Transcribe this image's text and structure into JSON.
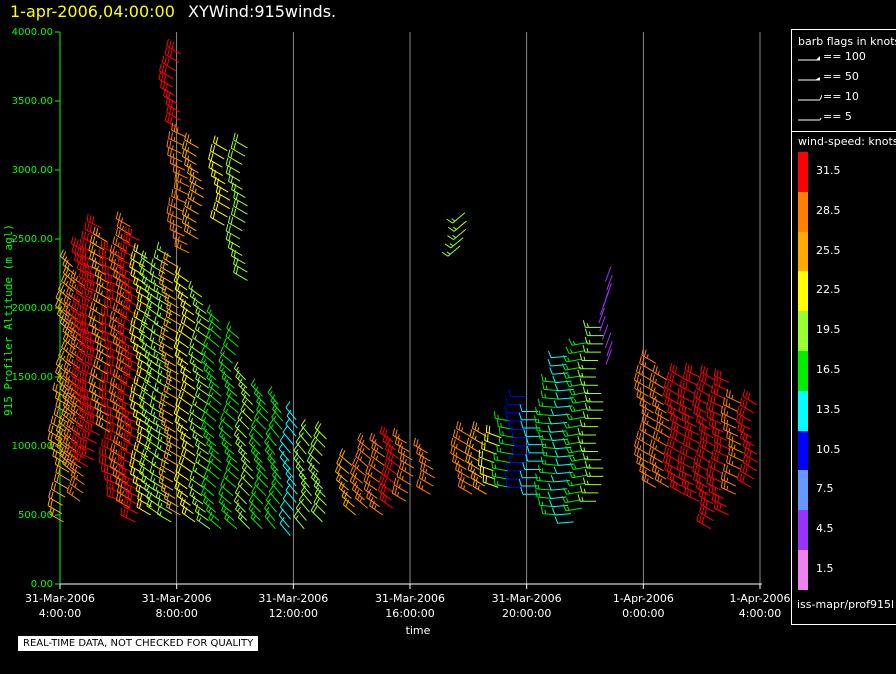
{
  "title": {
    "time": "1-apr-2006,04:00:00",
    "name": "XYWind:915winds."
  },
  "footer": {
    "quality_note": "REAL-TIME DATA, NOT CHECKED FOR QUALITY",
    "source": "iss-mapr/prof915l"
  },
  "legend": {
    "flags_title": "barb flags in knots",
    "flags": [
      {
        "label": "== 100",
        "kind": "pennant"
      },
      {
        "label": "== 50",
        "kind": "triangle"
      },
      {
        "label": "== 10",
        "kind": "full"
      },
      {
        "label": "== 5",
        "kind": "half"
      }
    ],
    "speed_title": "wind-speed: knots",
    "colorbar": [
      {
        "label": "31.5",
        "color": "#ff0000"
      },
      {
        "label": "28.5",
        "color": "#ff7f00"
      },
      {
        "label": "25.5",
        "color": "#ffaa00"
      },
      {
        "label": "22.5",
        "color": "#ffff00"
      },
      {
        "label": "19.5",
        "color": "#99ff33"
      },
      {
        "label": "16.5",
        "color": "#00ee00"
      },
      {
        "label": "13.5",
        "color": "#00ffff"
      },
      {
        "label": "10.5",
        "color": "#0000ff"
      },
      {
        "label": "7.5",
        "color": "#6699ff"
      },
      {
        "label": "4.5",
        "color": "#9933ff"
      },
      {
        "label": "1.5",
        "color": "#ee82ee"
      }
    ]
  },
  "chart_data": {
    "type": "scatter",
    "subtype": "wind-barb time-height profile",
    "xlabel": "time",
    "ylabel": "915 Profiler Altitude (m agl)",
    "ylim": [
      0,
      4000
    ],
    "yticks": [
      "0.00",
      "500.00",
      "1000.00",
      "1500.00",
      "2000.00",
      "2500.00",
      "3000.00",
      "3500.00",
      "4000.00"
    ],
    "xlim": [
      "2006-03-31T04:00",
      "2006-04-01T04:00"
    ],
    "xticks": [
      {
        "t": "2006-03-31T04:00",
        "line1": "31-Mar-2006",
        "line2": "4:00:00"
      },
      {
        "t": "2006-03-31T08:00",
        "line1": "31-Mar-2006",
        "line2": "8:00:00"
      },
      {
        "t": "2006-03-31T12:00",
        "line1": "31-Mar-2006",
        "line2": "12:00:00"
      },
      {
        "t": "2006-03-31T16:00",
        "line1": "31-Mar-2006",
        "line2": "16:00:00"
      },
      {
        "t": "2006-03-31T20:00",
        "line1": "31-Mar-2006",
        "line2": "20:00:00"
      },
      {
        "t": "2006-04-01T00:00",
        "line1": "1-Apr-2006",
        "line2": "0:00:00"
      },
      {
        "t": "2006-04-01T04:00",
        "line1": "1-Apr-2006",
        "line2": "4:00:00"
      }
    ],
    "grid": "vertical lines at x ticks",
    "speed_units": "knots",
    "profiles": [
      {
        "hour": 4.2,
        "bottom": 450,
        "top": 1400,
        "speed": 24,
        "dir": 300
      },
      {
        "hour": 4.4,
        "bottom": 800,
        "top": 2300,
        "speed": 26,
        "dir": 310
      },
      {
        "hour": 4.7,
        "bottom": 600,
        "top": 2200,
        "speed": 29,
        "dir": 305
      },
      {
        "hour": 5.0,
        "bottom": 850,
        "top": 2450,
        "speed": 31,
        "dir": 300
      },
      {
        "hour": 5.3,
        "bottom": 900,
        "top": 2600,
        "speed": 30,
        "dir": 295
      },
      {
        "hour": 5.6,
        "bottom": 1100,
        "top": 2500,
        "speed": 25,
        "dir": 300
      },
      {
        "hour": 6.0,
        "bottom": 600,
        "top": 2450,
        "speed": 31,
        "dir": 290
      },
      {
        "hour": 6.3,
        "bottom": 550,
        "top": 2600,
        "speed": 27,
        "dir": 300
      },
      {
        "hour": 6.6,
        "bottom": 450,
        "top": 2500,
        "speed": 30,
        "dir": 295
      },
      {
        "hour": 7.0,
        "bottom": 500,
        "top": 2400,
        "speed": 22,
        "dir": 300
      },
      {
        "hour": 7.3,
        "bottom": 500,
        "top": 2350,
        "speed": 20,
        "dir": 305
      },
      {
        "hour": 7.7,
        "bottom": 450,
        "top": 2400,
        "speed": 18,
        "dir": 300
      },
      {
        "hour": 8.0,
        "bottom": 3300,
        "top": 3850,
        "speed": 31,
        "dir": 300
      },
      {
        "hour": 8.0,
        "bottom": 500,
        "top": 2300,
        "speed": 24,
        "dir": 300
      },
      {
        "hour": 8.3,
        "bottom": 2400,
        "top": 3250,
        "speed": 27,
        "dir": 295
      },
      {
        "hour": 8.5,
        "bottom": 450,
        "top": 2200,
        "speed": 21,
        "dir": 305
      },
      {
        "hour": 8.8,
        "bottom": 2500,
        "top": 3200,
        "speed": 26,
        "dir": 300
      },
      {
        "hour": 9.0,
        "bottom": 400,
        "top": 2100,
        "speed": 19,
        "dir": 305
      },
      {
        "hour": 9.4,
        "bottom": 400,
        "top": 1900,
        "speed": 17,
        "dir": 310
      },
      {
        "hour": 9.7,
        "bottom": 2600,
        "top": 3150,
        "speed": 23,
        "dir": 300
      },
      {
        "hour": 10.0,
        "bottom": 400,
        "top": 1800,
        "speed": 16,
        "dir": 310
      },
      {
        "hour": 10.3,
        "bottom": 2200,
        "top": 3200,
        "speed": 20,
        "dir": 300
      },
      {
        "hour": 10.5,
        "bottom": 400,
        "top": 1500,
        "speed": 18,
        "dir": 315
      },
      {
        "hour": 11.0,
        "bottom": 400,
        "top": 1400,
        "speed": 16,
        "dir": 315
      },
      {
        "hour": 11.5,
        "bottom": 400,
        "top": 1300,
        "speed": 15,
        "dir": 320
      },
      {
        "hour": 12.0,
        "bottom": 350,
        "top": 1200,
        "speed": 14,
        "dir": 320
      },
      {
        "hour": 12.5,
        "bottom": 400,
        "top": 1100,
        "speed": 18,
        "dir": 320
      },
      {
        "hour": 13.0,
        "bottom": 450,
        "top": 1050,
        "speed": 20,
        "dir": 315
      },
      {
        "hour": 14.0,
        "bottom": 500,
        "top": 900,
        "speed": 24,
        "dir": 310
      },
      {
        "hour": 14.5,
        "bottom": 550,
        "top": 1000,
        "speed": 27,
        "dir": 310
      },
      {
        "hour": 15.0,
        "bottom": 500,
        "top": 1000,
        "speed": 28,
        "dir": 305
      },
      {
        "hour": 15.5,
        "bottom": 550,
        "top": 1050,
        "speed": 30,
        "dir": 305
      },
      {
        "hour": 16.0,
        "bottom": 600,
        "top": 1050,
        "speed": 29,
        "dir": 300
      },
      {
        "hour": 16.7,
        "bottom": 650,
        "top": 1000,
        "speed": 27,
        "dir": 300
      },
      {
        "hour": 17.8,
        "bottom": 2450,
        "top": 2700,
        "speed": 18,
        "dir": 230
      },
      {
        "hour": 18.0,
        "bottom": 650,
        "top": 1100,
        "speed": 29,
        "dir": 300
      },
      {
        "hour": 18.5,
        "bottom": 650,
        "top": 1100,
        "speed": 26,
        "dir": 300
      },
      {
        "hour": 19.0,
        "bottom": 700,
        "top": 1100,
        "speed": 22,
        "dir": 290
      },
      {
        "hour": 19.5,
        "bottom": 700,
        "top": 1200,
        "speed": 16,
        "dir": 280
      },
      {
        "hour": 20.0,
        "bottom": 700,
        "top": 1400,
        "speed": 11,
        "dir": 270
      },
      {
        "hour": 20.5,
        "bottom": 650,
        "top": 1300,
        "speed": 14,
        "dir": 270
      },
      {
        "hour": 21.0,
        "bottom": 500,
        "top": 1500,
        "speed": 17,
        "dir": 275
      },
      {
        "hour": 21.5,
        "bottom": 450,
        "top": 1700,
        "speed": 12,
        "dir": 265
      },
      {
        "hour": 22.0,
        "bottom": 550,
        "top": 1800,
        "speed": 15,
        "dir": 260
      },
      {
        "hour": 22.5,
        "bottom": 600,
        "top": 1900,
        "speed": 18,
        "dir": 270
      },
      {
        "hour": 22.8,
        "bottom": 1700,
        "top": 2300,
        "speed": 4,
        "dir": 200
      },
      {
        "hour": 24.3,
        "bottom": 700,
        "top": 1600,
        "speed": 28,
        "dir": 300
      },
      {
        "hour": 24.8,
        "bottom": 700,
        "top": 1500,
        "speed": 27,
        "dir": 300
      },
      {
        "hour": 25.3,
        "bottom": 650,
        "top": 1500,
        "speed": 30,
        "dir": 300
      },
      {
        "hour": 25.8,
        "bottom": 600,
        "top": 1500,
        "speed": 31,
        "dir": 295
      },
      {
        "hour": 26.3,
        "bottom": 400,
        "top": 1500,
        "speed": 31,
        "dir": 300
      },
      {
        "hour": 26.8,
        "bottom": 500,
        "top": 1500,
        "speed": 31,
        "dir": 295
      },
      {
        "hour": 27.3,
        "bottom": 650,
        "top": 1350,
        "speed": 28,
        "dir": 295
      },
      {
        "hour": 27.8,
        "bottom": 700,
        "top": 1300,
        "speed": 31,
        "dir": 300
      }
    ]
  }
}
